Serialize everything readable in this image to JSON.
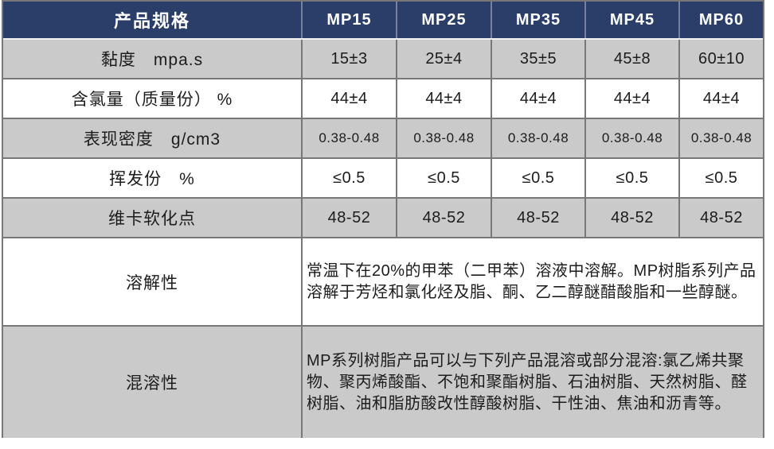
{
  "table": {
    "colors": {
      "header_bg": "#2a3e69",
      "header_text": "#ffffff",
      "row_gray": "#cacaca",
      "row_white": "#ffffff",
      "border": "#787878",
      "body_text": "#1c1c1c"
    },
    "header": {
      "label": "产品规格",
      "columns": [
        "MP15",
        "MP25",
        "MP35",
        "MP45",
        "MP60"
      ]
    },
    "rows": [
      {
        "label": "黏度　mpa.s",
        "values": [
          "15±3",
          "25±4",
          "35±5",
          "45±8",
          "60±10"
        ]
      },
      {
        "label": "含氯量（质量份） %",
        "values": [
          "44±4",
          "44±4",
          "44±4",
          "44±4",
          "44±4"
        ]
      },
      {
        "label": "表现密度　g/cm3",
        "values": [
          "0.38-0.48",
          "0.38-0.48",
          "0.38-0.48",
          "0.38-0.48",
          "0.38-0.48"
        ]
      },
      {
        "label": "挥发份　%",
        "values": [
          "≤0.5",
          "≤0.5",
          "≤0.5",
          "≤0.5",
          "≤0.5"
        ]
      },
      {
        "label": "维卡软化点",
        "values": [
          "48-52",
          "48-52",
          "48-52",
          "48-52",
          "48-52"
        ]
      }
    ],
    "text_rows": [
      {
        "label": "溶解性",
        "text": "常温下在20%的甲苯（二甲苯）溶液中溶解。MP树脂系列产品溶解于芳烃和氯化烃及脂、酮、乙二醇醚醋酸脂和一些醇醚。"
      },
      {
        "label": "混溶性",
        "text": "MP系列树脂产品可以与下列产品混溶或部分混溶:氯乙烯共聚物、聚丙烯酸酯、不饱和聚酯树脂、石油树脂、天然树脂、醛树脂、油和脂肪酸改性醇酸树脂、干性油、焦油和沥青等。"
      }
    ]
  }
}
